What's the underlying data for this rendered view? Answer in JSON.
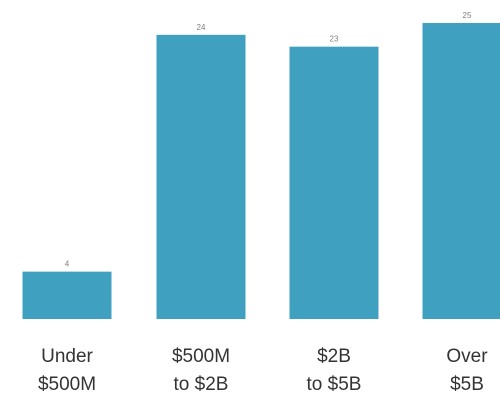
{
  "chart_data": {
    "type": "bar",
    "categories": [
      [
        "Under",
        "$500M"
      ],
      [
        "$500M",
        "to $2B"
      ],
      [
        "$2B",
        "to $5B"
      ],
      [
        "Over",
        "$5B"
      ]
    ],
    "values": [
      4,
      24,
      23,
      25
    ],
    "data_labels": [
      "4",
      "24",
      "23",
      "25"
    ],
    "ylim": [
      0,
      25
    ],
    "bar_color": "#40a0c0",
    "grid": false,
    "legend": "none"
  }
}
